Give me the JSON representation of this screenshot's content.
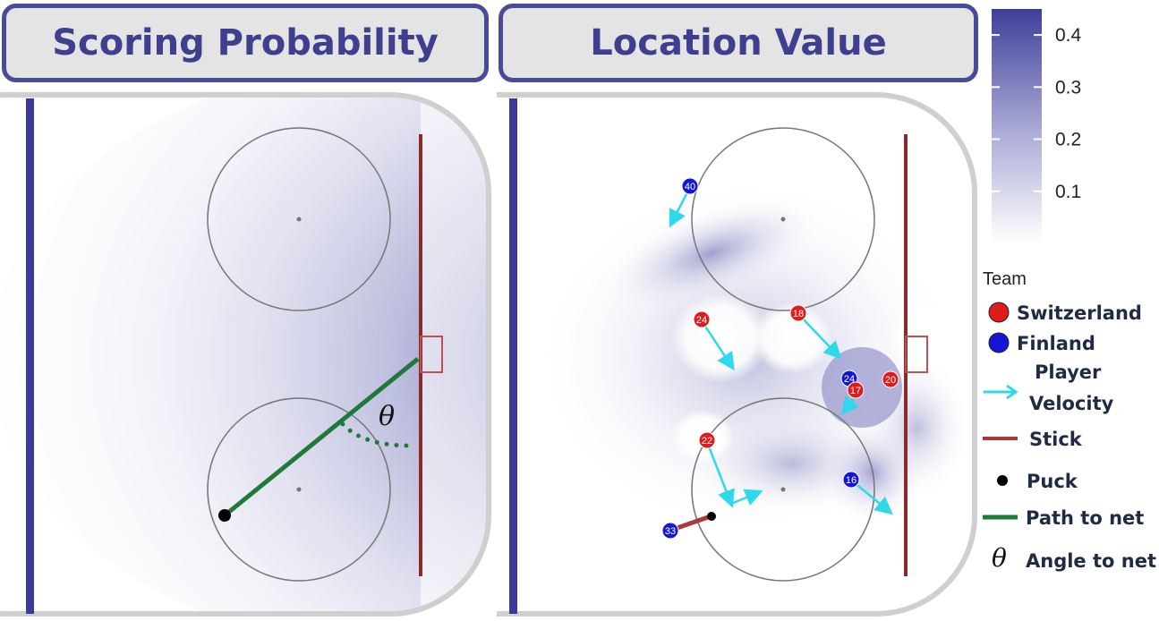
{
  "panels": {
    "left_title": "Scoring Probability",
    "right_title": "Location Value"
  },
  "colorbar": {
    "ticks": [
      "0.4",
      "0.3",
      "0.2",
      "0.1"
    ],
    "tick_values": [
      0.4,
      0.3,
      0.2,
      0.1
    ],
    "max": 0.45,
    "color_high": "#3f3f9a",
    "color_low": "#ffffff"
  },
  "legend": {
    "title": "Team",
    "teams": [
      {
        "label": "Switzerland",
        "color": "#e01b1b"
      },
      {
        "label": "Finland",
        "color": "#1515d8"
      }
    ],
    "velocity_label_1": "Player",
    "velocity_label_2": "Velocity",
    "stick_label": "Stick",
    "puck_label": "Puck",
    "path_label": "Path to net",
    "angle_symbol": "θ",
    "angle_label": "Angle to net"
  },
  "annotation": {
    "theta": "θ"
  },
  "players": {
    "switzerland": [
      "24",
      "18",
      "17",
      "20",
      "22"
    ],
    "finland": [
      "40",
      "24",
      "16",
      "33"
    ]
  },
  "colors": {
    "blue_line": "#3a3a9a",
    "goal_line": "#8b2a2a",
    "velocity": "#2fd8ea",
    "path": "#1f7a3a",
    "stick": "#a83a3a"
  }
}
